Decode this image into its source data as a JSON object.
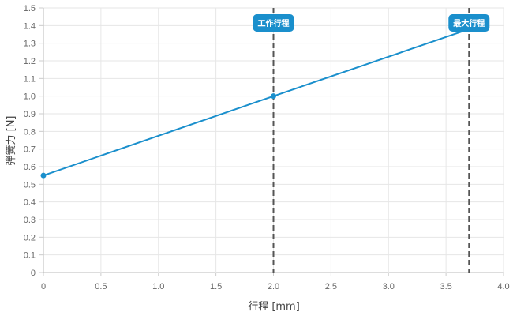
{
  "chart_data": {
    "type": "line",
    "xlabel": "行程 [mm]",
    "ylabel": "弾簧力 [N]",
    "xlim": [
      0,
      4.0
    ],
    "ylim": [
      0,
      1.5
    ],
    "x_ticks": [
      "0",
      "0.5",
      "1.0",
      "1.5",
      "2.0",
      "2.5",
      "3.0",
      "3.5",
      "4.0"
    ],
    "y_ticks": [
      "0",
      "0.1",
      "0.2",
      "0.3",
      "0.4",
      "0.5",
      "0.6",
      "0.7",
      "0.8",
      "0.9",
      "1.0",
      "1.1",
      "1.2",
      "1.3",
      "1.4",
      "1.5"
    ],
    "grid": true,
    "series": [
      {
        "color": "#1a8fcc",
        "points": [
          {
            "x": 0,
            "y": 0.55,
            "marker": true
          },
          {
            "x": 2.0,
            "y": 1.0,
            "marker": true
          },
          {
            "x": 3.7,
            "y": 1.38,
            "marker": false
          }
        ]
      }
    ],
    "annotations": [
      {
        "x": 2.0,
        "label": "工作行程",
        "line_style": "dashed",
        "line_color": "#555555",
        "badge_color": "#1a8fcc"
      },
      {
        "x": 3.7,
        "label": "最大行程",
        "line_style": "dashed",
        "line_color": "#555555",
        "badge_color": "#1a8fcc"
      }
    ]
  }
}
